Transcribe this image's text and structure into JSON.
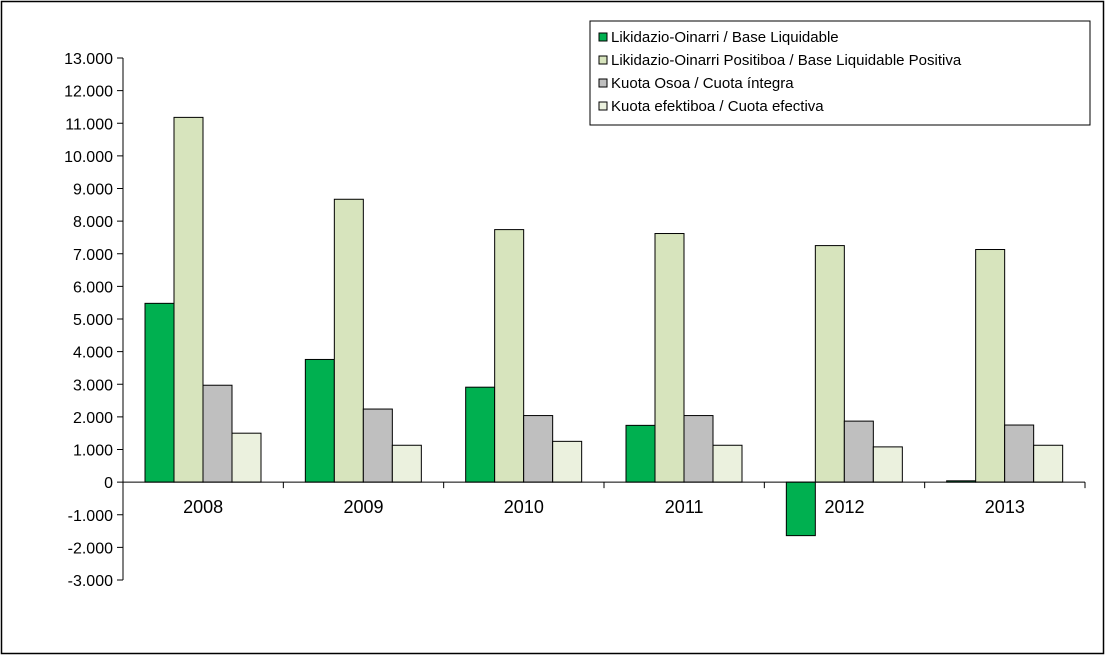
{
  "chart_data": {
    "type": "bar",
    "categories": [
      "2008",
      "2009",
      "2010",
      "2011",
      "2012",
      "2013"
    ],
    "series": [
      {
        "name": "Likidazio-Oinarri / Base Liquidable",
        "color": "#00b050",
        "values": [
          5480,
          3760,
          2910,
          1740,
          -1640,
          40
        ]
      },
      {
        "name": "Likidazio-Oinarri Positiboa / Base Liquidable Positiva",
        "color": "#d7e4bd",
        "values": [
          11180,
          8670,
          7740,
          7620,
          7250,
          7130
        ]
      },
      {
        "name": "Kuota Osoa / Cuota íntegra",
        "color": "#bfbfbf",
        "values": [
          2970,
          2240,
          2040,
          2040,
          1870,
          1750
        ]
      },
      {
        "name": "Kuota efektiboa / Cuota efectiva",
        "color": "#ebf1de",
        "values": [
          1500,
          1130,
          1250,
          1130,
          1080,
          1130
        ]
      }
    ],
    "yticks": [
      "13.000",
      "12.000",
      "11.000",
      "10.000",
      "9.000",
      "8.000",
      "7.000",
      "6.000",
      "5.000",
      "4.000",
      "3.000",
      "2.000",
      "1.000",
      "0",
      "-1.000",
      "-2.000",
      "-3.000"
    ],
    "ylim": [
      -3000,
      13000
    ],
    "grid": false,
    "legend": "top-right",
    "title": "",
    "xlabel": "",
    "ylabel": ""
  }
}
